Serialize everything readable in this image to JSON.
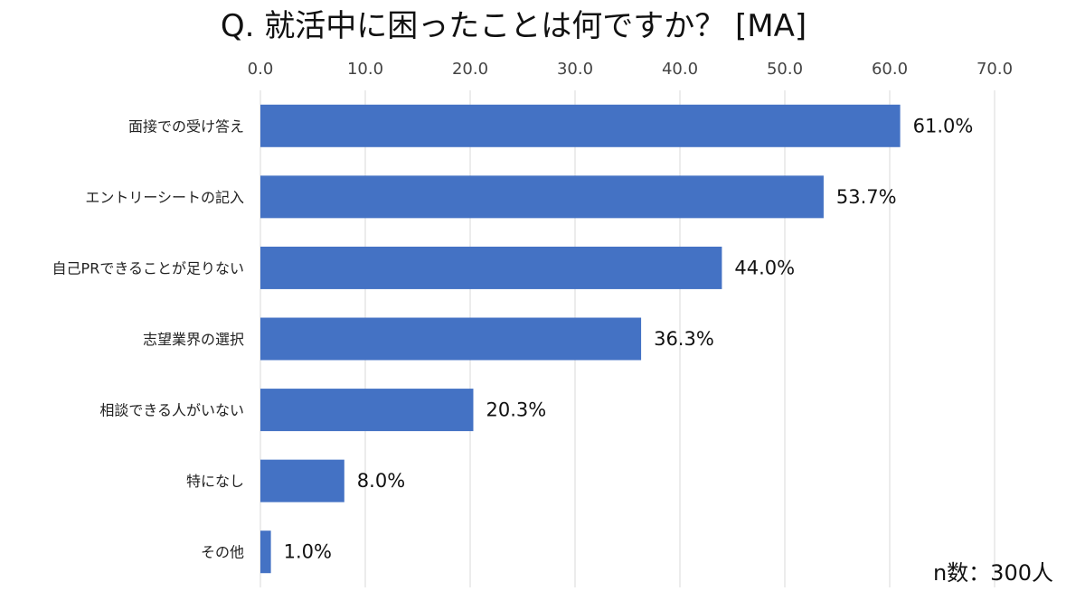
{
  "chart_data": {
    "type": "bar",
    "orientation": "horizontal",
    "title": "Q. 就活中に困ったことは何ですか？ [MA]",
    "categories": [
      "面接での受け答え",
      "エントリーシートの記入",
      "自己PRできることが足りない",
      "志望業界の選択",
      "相談できる人がいない",
      "特になし",
      "その他"
    ],
    "values": [
      61.0,
      53.7,
      44.0,
      36.3,
      20.3,
      8.0,
      1.0
    ],
    "data_labels": [
      "61.0%",
      "53.7%",
      "44.0%",
      "36.3%",
      "20.3%",
      "8.0%",
      "1.0%"
    ],
    "xlim": [
      0,
      70
    ],
    "x_ticks": [
      "0.0",
      "10.0",
      "20.0",
      "30.0",
      "40.0",
      "50.0",
      "60.0",
      "70.0"
    ],
    "x_axis_position": "top",
    "grid": true,
    "bar_color": "#4472C4",
    "annotation": "n数：300人"
  }
}
